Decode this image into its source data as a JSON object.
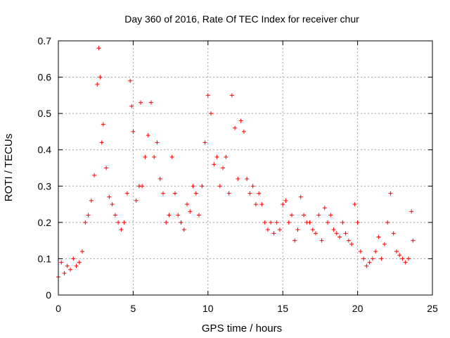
{
  "chart_data": {
    "type": "scatter",
    "title": "Day 360 of 2016, Rate Of TEC Index for receiver chur",
    "xlabel": "GPS time / hours",
    "ylabel": "ROTI / TECUs",
    "xlim": [
      0,
      25
    ],
    "ylim": [
      0,
      0.7
    ],
    "xticks": [
      0,
      5,
      10,
      15,
      20,
      25
    ],
    "yticks": [
      0,
      0.1,
      0.2,
      0.3,
      0.4,
      0.5,
      0.6,
      0.7
    ],
    "xtick_labels": [
      "0",
      "5",
      "10",
      "15",
      "20",
      "25"
    ],
    "ytick_labels": [
      "0",
      "0.1",
      "0.2",
      "0.3",
      "0.4",
      "0.5",
      "0.6",
      "0.7"
    ],
    "grid": true,
    "marker": "+",
    "marker_color": "#ff0000",
    "series": [
      {
        "x": [
          0.0,
          0.2,
          0.4,
          0.6,
          0.8,
          1.0,
          1.2,
          1.4,
          1.6,
          1.8,
          2.0,
          2.2,
          2.4,
          2.6,
          2.7,
          2.8,
          2.9,
          3.0,
          3.2,
          3.4,
          3.6,
          3.8,
          4.0,
          4.2,
          4.4,
          4.6,
          4.8,
          4.9,
          5.0,
          5.2,
          5.4,
          5.5,
          5.6,
          5.8,
          6.0,
          6.2,
          6.4,
          6.6,
          6.8,
          7.0,
          7.2,
          7.4,
          7.6,
          7.8,
          8.0,
          8.2,
          8.4,
          8.6,
          8.8,
          9.0,
          9.2,
          9.4,
          9.6,
          9.8,
          10.0,
          10.2,
          10.4,
          10.6,
          10.8,
          11.0,
          11.2,
          11.4,
          11.6,
          11.8,
          12.0,
          12.2,
          12.4,
          12.6,
          12.8,
          13.0,
          13.2,
          13.4,
          13.6,
          13.8,
          14.0,
          14.2,
          14.4,
          14.6,
          14.8,
          15.0,
          15.2,
          15.4,
          15.6,
          15.8,
          16.0,
          16.2,
          16.4,
          16.6,
          16.8,
          17.0,
          17.2,
          17.4,
          17.6,
          17.8,
          18.0,
          18.2,
          18.4,
          18.6,
          18.8,
          19.0,
          19.2,
          19.4,
          19.6,
          19.8,
          20.0,
          20.2,
          20.4,
          20.6,
          20.8,
          21.0,
          21.2,
          21.4,
          21.6,
          21.8,
          22.0,
          22.2,
          22.4,
          22.6,
          22.8,
          23.0,
          23.2,
          23.4,
          23.6,
          23.7
        ],
        "y": [
          0.05,
          0.09,
          0.06,
          0.08,
          0.07,
          0.1,
          0.08,
          0.09,
          0.12,
          0.2,
          0.22,
          0.26,
          0.33,
          0.58,
          0.68,
          0.6,
          0.42,
          0.47,
          0.35,
          0.27,
          0.25,
          0.22,
          0.2,
          0.18,
          0.2,
          0.28,
          0.59,
          0.52,
          0.45,
          0.26,
          0.3,
          0.53,
          0.3,
          0.38,
          0.44,
          0.53,
          0.38,
          0.42,
          0.32,
          0.28,
          0.2,
          0.22,
          0.38,
          0.28,
          0.22,
          0.2,
          0.18,
          0.25,
          0.23,
          0.3,
          0.28,
          0.22,
          0.3,
          0.42,
          0.55,
          0.5,
          0.36,
          0.38,
          0.3,
          0.35,
          0.38,
          0.28,
          0.55,
          0.46,
          0.32,
          0.48,
          0.45,
          0.32,
          0.28,
          0.3,
          0.25,
          0.28,
          0.25,
          0.2,
          0.18,
          0.2,
          0.17,
          0.2,
          0.18,
          0.25,
          0.26,
          0.2,
          0.22,
          0.15,
          0.18,
          0.27,
          0.22,
          0.2,
          0.2,
          0.18,
          0.17,
          0.22,
          0.15,
          0.24,
          0.2,
          0.22,
          0.18,
          0.17,
          0.16,
          0.2,
          0.17,
          0.15,
          0.14,
          0.25,
          0.2,
          0.12,
          0.1,
          0.08,
          0.09,
          0.1,
          0.12,
          0.16,
          0.1,
          0.14,
          0.2,
          0.28,
          0.17,
          0.12,
          0.11,
          0.1,
          0.09,
          0.1,
          0.23,
          0.15
        ]
      }
    ]
  }
}
